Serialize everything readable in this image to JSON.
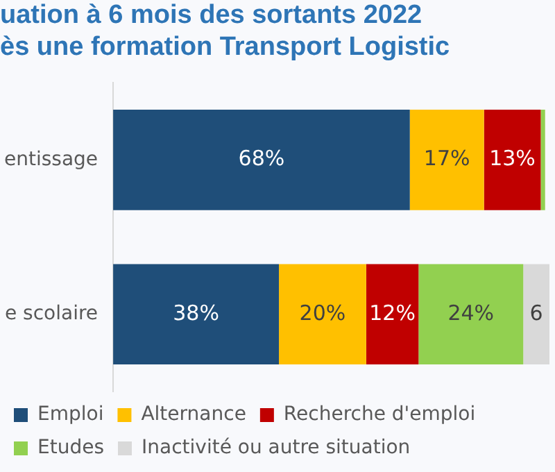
{
  "chart_data": {
    "type": "bar",
    "orientation": "horizontal",
    "stacked": true,
    "title": [
      "uation à 6 mois des sortants 2022",
      "ès une formation Transport Logistic"
    ],
    "categories": [
      "entissage",
      "e scolaire"
    ],
    "series": [
      {
        "name": "Emploi",
        "color": "#1f4e79",
        "values": [
          68,
          38
        ],
        "value_labels": [
          "68%",
          "38%"
        ]
      },
      {
        "name": "Alternance",
        "color": "#ffc000",
        "values": [
          17,
          20
        ],
        "value_labels": [
          "17%",
          "20%"
        ]
      },
      {
        "name": "Recherche d'emploi",
        "color": "#c00000",
        "values": [
          13,
          12
        ],
        "value_labels": [
          "13%",
          "12%"
        ]
      },
      {
        "name": "Etudes",
        "color": "#92d050",
        "values": [
          1,
          24
        ],
        "value_labels": [
          null,
          "24%"
        ]
      },
      {
        "name": "Inactivité ou autre situation",
        "color": "#d9d9d9",
        "values": [
          null,
          6
        ],
        "value_labels": [
          null,
          "6"
        ]
      }
    ],
    "xlim": [
      0,
      100
    ],
    "tick_labels": "y",
    "legend": "bottom"
  }
}
